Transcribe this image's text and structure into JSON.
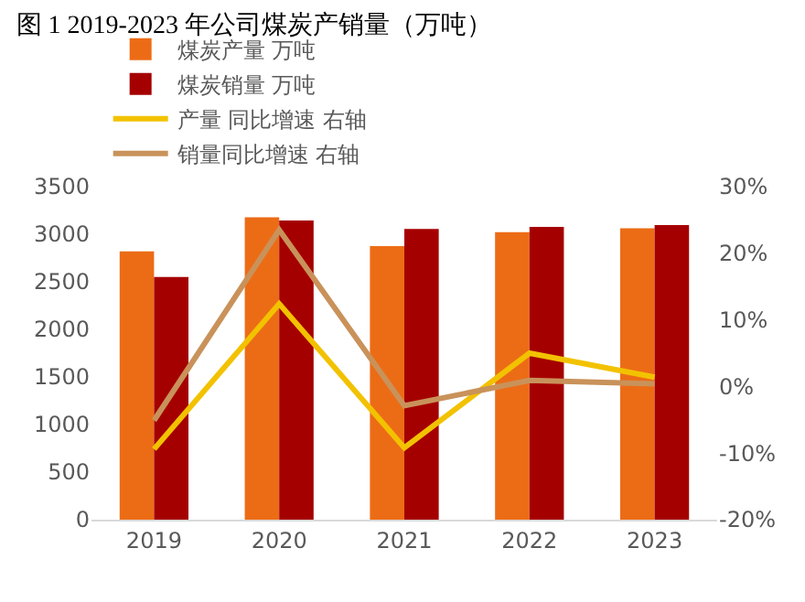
{
  "chart_data": {
    "type": "bar",
    "title": "图 1 2019-2023 年公司煤炭产销量（万吨）",
    "categories": [
      "2019",
      "2020",
      "2021",
      "2022",
      "2023"
    ],
    "series": [
      {
        "name": "煤炭产量 万吨",
        "color": "#ec6c16",
        "values": [
          2820,
          3177,
          2874,
          3022,
          3062
        ]
      },
      {
        "name": "煤炭销量 万吨",
        "color": "#a50000",
        "values": [
          2551,
          3143,
          3056,
          3076,
          3096
        ]
      },
      {
        "name": "产量 同比增速 右轴",
        "type": "line",
        "axis": "y2",
        "color": "#f2c200",
        "values": [
          -9.4,
          12.4,
          -9.2,
          5.0,
          1.4
        ]
      },
      {
        "name": "销量同比增速 右轴",
        "type": "line",
        "axis": "y2",
        "color": "#c9925a",
        "values": [
          -5.1,
          23.5,
          -2.9,
          0.9,
          0.4
        ]
      }
    ],
    "ylim": [
      0,
      3500
    ],
    "yticks": [
      0,
      500,
      1000,
      1500,
      2000,
      2500,
      3000,
      3500
    ],
    "y2lim": [
      -20,
      30
    ],
    "y2ticks": [
      {
        "value": -20,
        "label": "-20%"
      },
      {
        "value": -10,
        "label": "-10%"
      },
      {
        "value": 0,
        "label": "0%"
      },
      {
        "value": 10,
        "label": "10%"
      },
      {
        "value": 20,
        "label": "20%"
      },
      {
        "value": 30,
        "label": "30%"
      }
    ],
    "grid": false,
    "legend": "top"
  }
}
